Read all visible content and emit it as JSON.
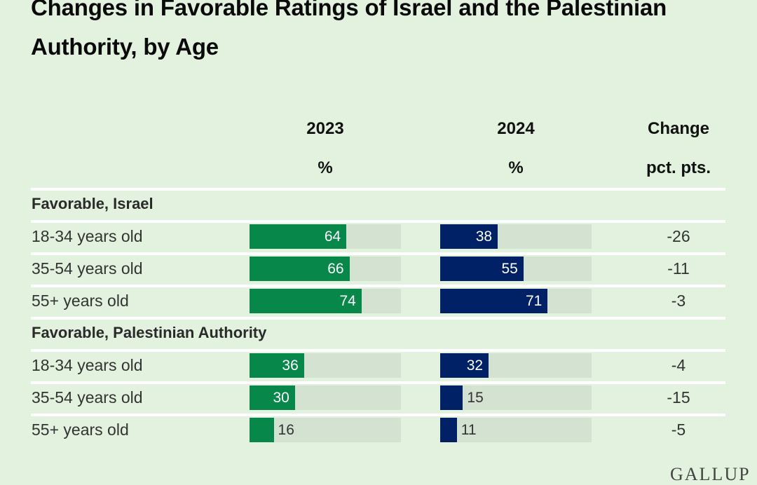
{
  "title": "Changes in Favorable Ratings of Israel and the Palestinian Authority, by Age",
  "logo": "GALLUP",
  "colors": {
    "background": "#e3f2df",
    "bar_2023": "#07874a",
    "bar_2024": "#002165",
    "track": "#d3e2d1",
    "separator": "#ffffff"
  },
  "chart_data": {
    "type": "bar",
    "title": "Changes in Favorable Ratings of Israel and the Palestinian Authority, by Age",
    "columns": [
      {
        "header": "2023",
        "subheader": "%"
      },
      {
        "header": "2024",
        "subheader": "%"
      },
      {
        "header": "Change",
        "subheader": "pct. pts."
      }
    ],
    "xlim": [
      0,
      100
    ],
    "groups": [
      {
        "label": "Favorable, Israel",
        "rows": [
          {
            "label": "18-34 years old",
            "v2023": 64,
            "v2024": 38,
            "change": "-26"
          },
          {
            "label": "35-54 years old",
            "v2023": 66,
            "v2024": 55,
            "change": "-11"
          },
          {
            "label": "55+ years old",
            "v2023": 74,
            "v2024": 71,
            "change": "-3"
          }
        ]
      },
      {
        "label": "Favorable, Palestinian Authority",
        "rows": [
          {
            "label": "18-34 years old",
            "v2023": 36,
            "v2024": 32,
            "change": "-4"
          },
          {
            "label": "35-54 years old",
            "v2023": 30,
            "v2024": 15,
            "change": "-15"
          },
          {
            "label": "55+ years old",
            "v2023": 16,
            "v2024": 11,
            "change": "-5"
          }
        ]
      }
    ],
    "series": [
      {
        "name": "2023",
        "values": [
          64,
          66,
          74,
          36,
          30,
          16
        ]
      },
      {
        "name": "2024",
        "values": [
          38,
          55,
          71,
          32,
          15,
          11
        ]
      }
    ],
    "categories": [
      "Israel 18-34 years old",
      "Israel 35-54 years old",
      "Israel 55+ years old",
      "Palestinian Authority 18-34 years old",
      "Palestinian Authority 35-54 years old",
      "Palestinian Authority 55+ years old"
    ]
  }
}
